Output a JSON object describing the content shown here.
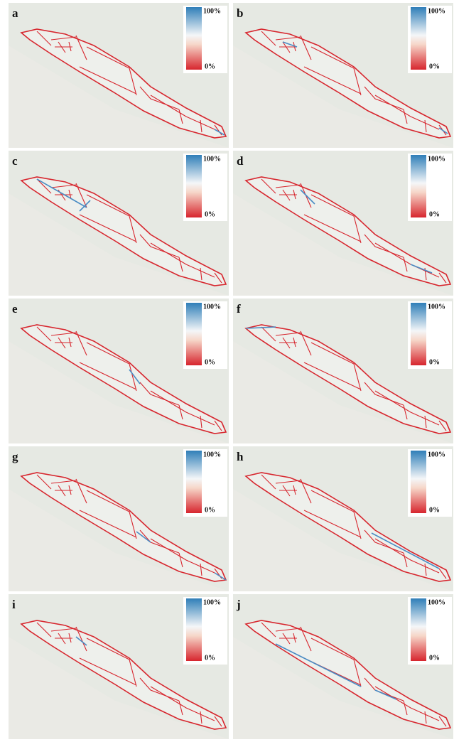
{
  "panels": [
    {
      "label": "a",
      "legend_max": "100%",
      "legend_min": "0%"
    },
    {
      "label": "b",
      "legend_max": "100%",
      "legend_min": "0%"
    },
    {
      "label": "c",
      "legend_max": "100%",
      "legend_min": "0%"
    },
    {
      "label": "d",
      "legend_max": "100%",
      "legend_min": "0%"
    },
    {
      "label": "e",
      "legend_max": "100%",
      "legend_min": "0%"
    },
    {
      "label": "f",
      "legend_max": "100%",
      "legend_min": "0%"
    },
    {
      "label": "g",
      "legend_max": "100%",
      "legend_min": "0%"
    },
    {
      "label": "h",
      "legend_max": "100%",
      "legend_min": "0%"
    },
    {
      "label": "i",
      "legend_max": "100%",
      "legend_min": "0%"
    },
    {
      "label": "j",
      "legend_max": "100%",
      "legend_min": "0%"
    }
  ]
}
